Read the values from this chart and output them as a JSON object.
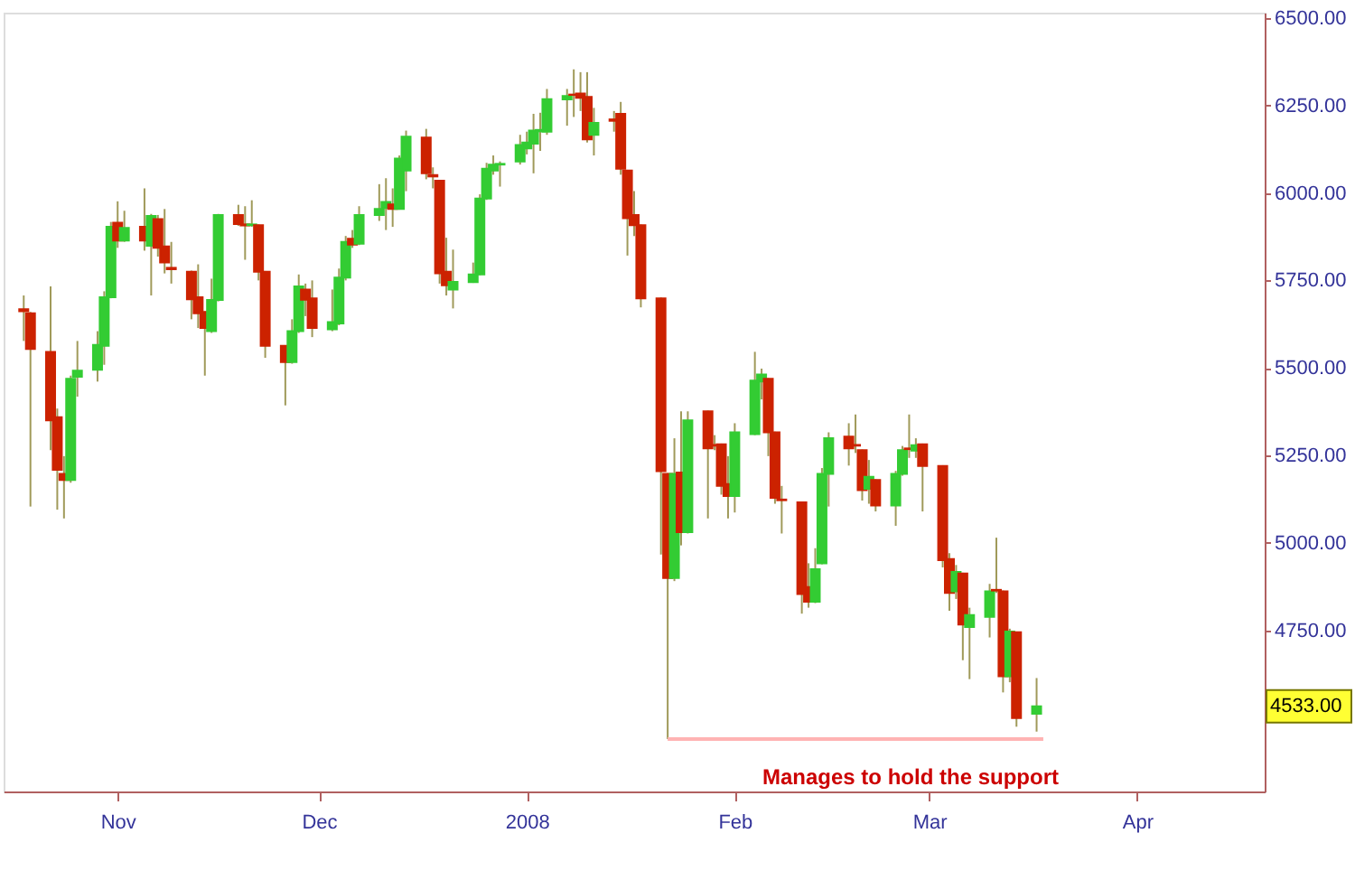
{
  "chart_data": {
    "type": "candlestick",
    "x": [
      "2007-10-18",
      "2007-10-19",
      "2007-10-22",
      "2007-10-23",
      "2007-10-24",
      "2007-10-25",
      "2007-10-26",
      "2007-10-29",
      "2007-10-30",
      "2007-10-31",
      "2007-11-01",
      "2007-11-02",
      "2007-11-05",
      "2007-11-06",
      "2007-11-07",
      "2007-11-08",
      "2007-11-09",
      "2007-11-12",
      "2007-11-13",
      "2007-11-14",
      "2007-11-15",
      "2007-11-16",
      "2007-11-19",
      "2007-11-20",
      "2007-11-21",
      "2007-11-22",
      "2007-11-23",
      "2007-11-26",
      "2007-11-27",
      "2007-11-28",
      "2007-11-29",
      "2007-11-30",
      "2007-12-03",
      "2007-12-04",
      "2007-12-05",
      "2007-12-06",
      "2007-12-07",
      "2007-12-10",
      "2007-12-11",
      "2007-12-12",
      "2007-12-13",
      "2007-12-14",
      "2007-12-17",
      "2007-12-18",
      "2007-12-19",
      "2007-12-20",
      "2007-12-21",
      "2007-12-24",
      "2007-12-25",
      "2007-12-26",
      "2007-12-27",
      "2007-12-28",
      "2007-12-31",
      "2008-01-01",
      "2008-01-02",
      "2008-01-03",
      "2008-01-04",
      "2008-01-07",
      "2008-01-08",
      "2008-01-09",
      "2008-01-10",
      "2008-01-11",
      "2008-01-14",
      "2008-01-15",
      "2008-01-16",
      "2008-01-17",
      "2008-01-18",
      "2008-01-21",
      "2008-01-22",
      "2008-01-23",
      "2008-01-24",
      "2008-01-25",
      "2008-01-28",
      "2008-01-29",
      "2008-01-30",
      "2008-01-31",
      "2008-02-01",
      "2008-02-04",
      "2008-02-05",
      "2008-02-06",
      "2008-02-07",
      "2008-02-08",
      "2008-02-11",
      "2008-02-12",
      "2008-02-13",
      "2008-02-14",
      "2008-02-15",
      "2008-02-18",
      "2008-02-19",
      "2008-02-20",
      "2008-02-21",
      "2008-02-22",
      "2008-02-25",
      "2008-02-26",
      "2008-02-27",
      "2008-02-28",
      "2008-02-29",
      "2008-03-03",
      "2008-03-04",
      "2008-03-05",
      "2008-03-06",
      "2008-03-07",
      "2008-03-10",
      "2008-03-11",
      "2008-03-12",
      "2008-03-13",
      "2008-03-14",
      "2008-03-17"
    ],
    "ohlc": [
      [
        5668,
        5707,
        5577,
        5662
      ],
      [
        5656,
        5660,
        5104,
        5554
      ],
      [
        5546,
        5733,
        5265,
        5350
      ],
      [
        5359,
        5384,
        5095,
        5209
      ],
      [
        5197,
        5248,
        5070,
        5180
      ],
      [
        5180,
        5478,
        5172,
        5469
      ],
      [
        5475,
        5577,
        5418,
        5492
      ],
      [
        5495,
        5605,
        5461,
        5566
      ],
      [
        5563,
        5719,
        5509,
        5702
      ],
      [
        5702,
        5917,
        5699,
        5903
      ],
      [
        5915,
        5976,
        5843,
        5864
      ],
      [
        5864,
        5949,
        5860,
        5900
      ],
      [
        5903,
        6013,
        5835,
        5864
      ],
      [
        5849,
        5940,
        5707,
        5934
      ],
      [
        5925,
        5937,
        5818,
        5843
      ],
      [
        5847,
        5954,
        5770,
        5801
      ],
      [
        5786,
        5860,
        5741,
        5782
      ],
      [
        5775,
        5778,
        5639,
        5696
      ],
      [
        5702,
        5796,
        5614,
        5656
      ],
      [
        5660,
        5662,
        5478,
        5614
      ],
      [
        5605,
        5755,
        5600,
        5694
      ],
      [
        5694,
        5940,
        5690,
        5937
      ],
      [
        5937,
        5966,
        5906,
        5911
      ],
      [
        5910,
        5962,
        5809,
        5907
      ],
      [
        5908,
        5979,
        5903,
        5910
      ],
      [
        5908,
        5910,
        5750,
        5775
      ],
      [
        5775,
        5777,
        5529,
        5563
      ],
      [
        5563,
        5565,
        5393,
        5517
      ],
      [
        5517,
        5639,
        5512,
        5605
      ],
      [
        5605,
        5767,
        5600,
        5733
      ],
      [
        5724,
        5741,
        5648,
        5695
      ],
      [
        5699,
        5750,
        5588,
        5614
      ],
      [
        5610,
        5724,
        5605,
        5631
      ],
      [
        5627,
        5784,
        5622,
        5758
      ],
      [
        5758,
        5877,
        5750,
        5860
      ],
      [
        5869,
        5894,
        5843,
        5852
      ],
      [
        5855,
        5962,
        5851,
        5937
      ],
      [
        5937,
        6025,
        5920,
        5954
      ],
      [
        5957,
        6042,
        5894,
        5974
      ],
      [
        5967,
        6013,
        5903,
        5954
      ],
      [
        5954,
        6107,
        5952,
        6098
      ],
      [
        6064,
        6178,
        6005,
        6161
      ],
      [
        6158,
        6183,
        6039,
        6056
      ],
      [
        6051,
        6073,
        6013,
        6047
      ],
      [
        6035,
        6037,
        5741,
        5770
      ],
      [
        5775,
        5872,
        5707,
        5736
      ],
      [
        5724,
        5838,
        5670,
        5746
      ],
      [
        5745,
        5801,
        5743,
        5767
      ],
      [
        5767,
        5996,
        5765,
        5984
      ],
      [
        5984,
        6086,
        5980,
        6069
      ],
      [
        6064,
        6107,
        6052,
        6081
      ],
      [
        6081,
        6090,
        6018,
        6083
      ],
      [
        6090,
        6166,
        6081,
        6137
      ],
      [
        6127,
        6175,
        6110,
        6144
      ],
      [
        6141,
        6226,
        6056,
        6178
      ],
      [
        6176,
        6229,
        6120,
        6180
      ],
      [
        6175,
        6297,
        6166,
        6268
      ],
      [
        6267,
        6297,
        6192,
        6277
      ],
      [
        6281,
        6353,
        6217,
        6280
      ],
      [
        6284,
        6345,
        6234,
        6272
      ],
      [
        6274,
        6345,
        6144,
        6153
      ],
      [
        6166,
        6243,
        6107,
        6200
      ],
      [
        6210,
        6234,
        6175,
        6206
      ],
      [
        6226,
        6260,
        6052,
        6069
      ],
      [
        6064,
        6066,
        5821,
        5928
      ],
      [
        5937,
        6005,
        5877,
        5908
      ],
      [
        5908,
        5910,
        5673,
        5699
      ],
      [
        5699,
        5701,
        4967,
        5205
      ],
      [
        5197,
        5200,
        4440,
        4900
      ],
      [
        4900,
        5299,
        4891,
        5197
      ],
      [
        5201,
        5376,
        4993,
        5031
      ],
      [
        5031,
        5376,
        5027,
        5350
      ],
      [
        5376,
        5378,
        5070,
        5270
      ],
      [
        5280,
        5308,
        5265,
        5278
      ],
      [
        5282,
        5284,
        5138,
        5163
      ],
      [
        5168,
        5248,
        5070,
        5134
      ],
      [
        5134,
        5342,
        5087,
        5316
      ],
      [
        5311,
        5546,
        5308,
        5464
      ],
      [
        5461,
        5498,
        5410,
        5481
      ],
      [
        5469,
        5471,
        5248,
        5316
      ],
      [
        5316,
        5318,
        5112,
        5129
      ],
      [
        5124,
        5163,
        5027,
        5122
      ],
      [
        5116,
        5118,
        4798,
        4854
      ],
      [
        4874,
        4942,
        4815,
        4832
      ],
      [
        4832,
        4985,
        4828,
        4925
      ],
      [
        4942,
        5214,
        4939,
        5197
      ],
      [
        5197,
        5316,
        5104,
        5299
      ],
      [
        5304,
        5342,
        5221,
        5270
      ],
      [
        5280,
        5367,
        5257,
        5278
      ],
      [
        5265,
        5267,
        5121,
        5151
      ],
      [
        5155,
        5237,
        5112,
        5189
      ],
      [
        5180,
        5182,
        5090,
        5107
      ],
      [
        5107,
        5206,
        5049,
        5197
      ],
      [
        5197,
        5277,
        5192,
        5265
      ],
      [
        5270,
        5367,
        5243,
        5268
      ],
      [
        5264,
        5299,
        5243,
        5279
      ],
      [
        5282,
        5284,
        5090,
        5220
      ],
      [
        5220,
        5222,
        4930,
        4951
      ],
      [
        4954,
        4971,
        4806,
        4857
      ],
      [
        4862,
        4937,
        4840,
        4917
      ],
      [
        4913,
        4915,
        4665,
        4767
      ],
      [
        4760,
        4815,
        4611,
        4794
      ],
      [
        4789,
        4883,
        4730,
        4862
      ],
      [
        4866,
        5015,
        4857,
        4864
      ],
      [
        4862,
        4864,
        4573,
        4619
      ],
      [
        4619,
        4755,
        4602,
        4747
      ],
      [
        4745,
        4747,
        4475,
        4500
      ],
      [
        4512,
        4614,
        4461,
        4533
      ]
    ],
    "colors": [
      "#cc2200",
      "#cc2200",
      "#cc2200",
      "#cc2200",
      "#cc2200",
      "#33cc33",
      "#33cc33",
      "#33cc33",
      "#33cc33",
      "#33cc33",
      "#cc2200",
      "#33cc33",
      "#cc2200",
      "#33cc33",
      "#cc2200",
      "#cc2200",
      "#cc2200",
      "#cc2200",
      "#cc2200",
      "#cc2200",
      "#33cc33",
      "#33cc33",
      "#cc2200",
      "#cc2200",
      "#33cc33",
      "#cc2200",
      "#cc2200",
      "#cc2200",
      "#33cc33",
      "#33cc33",
      "#cc2200",
      "#cc2200",
      "#33cc33",
      "#33cc33",
      "#33cc33",
      "#cc2200",
      "#33cc33",
      "#33cc33",
      "#33cc33",
      "#cc2200",
      "#33cc33",
      "#33cc33",
      "#cc2200",
      "#cc2200",
      "#cc2200",
      "#cc2200",
      "#33cc33",
      "#33cc33",
      "#33cc33",
      "#33cc33",
      "#33cc33",
      "#33cc33",
      "#33cc33",
      "#33cc33",
      "#33cc33",
      "#33cc33",
      "#33cc33",
      "#33cc33",
      "#cc2200",
      "#cc2200",
      "#cc2200",
      "#33cc33",
      "#cc2200",
      "#cc2200",
      "#cc2200",
      "#cc2200",
      "#cc2200",
      "#cc2200",
      "#cc2200",
      "#33cc33",
      "#cc2200",
      "#33cc33",
      "#cc2200",
      "#cc2200",
      "#cc2200",
      "#cc2200",
      "#33cc33",
      "#33cc33",
      "#33cc33",
      "#cc2200",
      "#cc2200",
      "#cc2200",
      "#cc2200",
      "#cc2200",
      "#33cc33",
      "#33cc33",
      "#33cc33",
      "#cc2200",
      "#cc2200",
      "#cc2200",
      "#33cc33",
      "#cc2200",
      "#33cc33",
      "#33cc33",
      "#cc2200",
      "#33cc33",
      "#cc2200",
      "#cc2200",
      "#cc2200",
      "#33cc33",
      "#cc2200",
      "#33cc33",
      "#33cc33",
      "#cc2200",
      "#cc2200",
      "#33cc33",
      "#cc2200",
      "#33cc33"
    ],
    "series": [
      {
        "type": "line",
        "x": [
          "2008-01-22",
          "2008-03-18"
        ],
        "values": [
          4440,
          4440
        ],
        "color": "#ffb3b3"
      }
    ],
    "xlim": [
      "2007-10-15",
      "2008-04-20"
    ],
    "xticks": [
      {
        "value": "2007-11-01",
        "label": "Nov"
      },
      {
        "value": "2007-12-01",
        "label": "Dec"
      },
      {
        "value": "2008-01-01",
        "label": "2008"
      },
      {
        "value": "2008-02-01",
        "label": "Feb"
      },
      {
        "value": "2008-03-01",
        "label": "Mar"
      },
      {
        "value": "2008-04-01",
        "label": "Apr"
      }
    ],
    "ylim": [
      4290,
      6515
    ],
    "yticks": [
      {
        "value": 4500,
        "label": null
      },
      {
        "value": 4750,
        "label": "4750.00"
      },
      {
        "value": 5000,
        "label": "5000.00"
      },
      {
        "value": 5250,
        "label": "5250.00"
      },
      {
        "value": 5500,
        "label": "5500.00"
      },
      {
        "value": 5750,
        "label": "5750.00"
      },
      {
        "value": 6000,
        "label": "6000.00"
      },
      {
        "value": 6250,
        "label": "6250.00"
      },
      {
        "value": 6500,
        "label": "6500.00"
      }
    ],
    "annotations": [
      "4533.00",
      "Manages to hold the support"
    ],
    "grid": false
  }
}
